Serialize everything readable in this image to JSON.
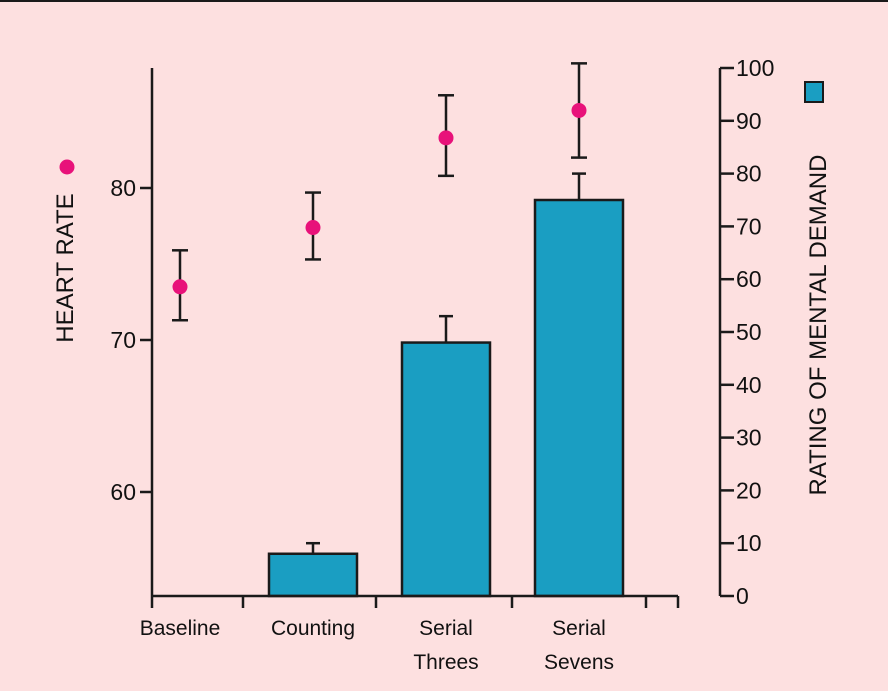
{
  "chart_data": {
    "type": "bar",
    "categories": [
      {
        "lines": [
          "Baseline"
        ]
      },
      {
        "lines": [
          "Counting"
        ]
      },
      {
        "lines": [
          "Serial",
          "Threes"
        ]
      },
      {
        "lines": [
          "Serial",
          "Sevens"
        ]
      }
    ],
    "heart_rate": {
      "axis_label": "HEART RATE",
      "marker_color": "#e8127a",
      "ticks": [
        60,
        70,
        80
      ],
      "range": [
        53,
        88
      ],
      "values": [
        73.5,
        77.4,
        83.3,
        85.1
      ],
      "error_low": [
        71.3,
        75.3,
        80.8,
        82.0
      ],
      "error_high": [
        75.9,
        79.7,
        86.1,
        88.2
      ]
    },
    "mental_demand": {
      "axis_label": "RATING OF MENTAL DEMAND",
      "bar_color": "#1a9ec2",
      "ticks": [
        0,
        10,
        20,
        30,
        40,
        50,
        60,
        70,
        80,
        90,
        100
      ],
      "range": [
        0,
        100
      ],
      "values": [
        null,
        8,
        48,
        75
      ],
      "error_high": [
        null,
        10,
        53,
        80
      ]
    }
  }
}
